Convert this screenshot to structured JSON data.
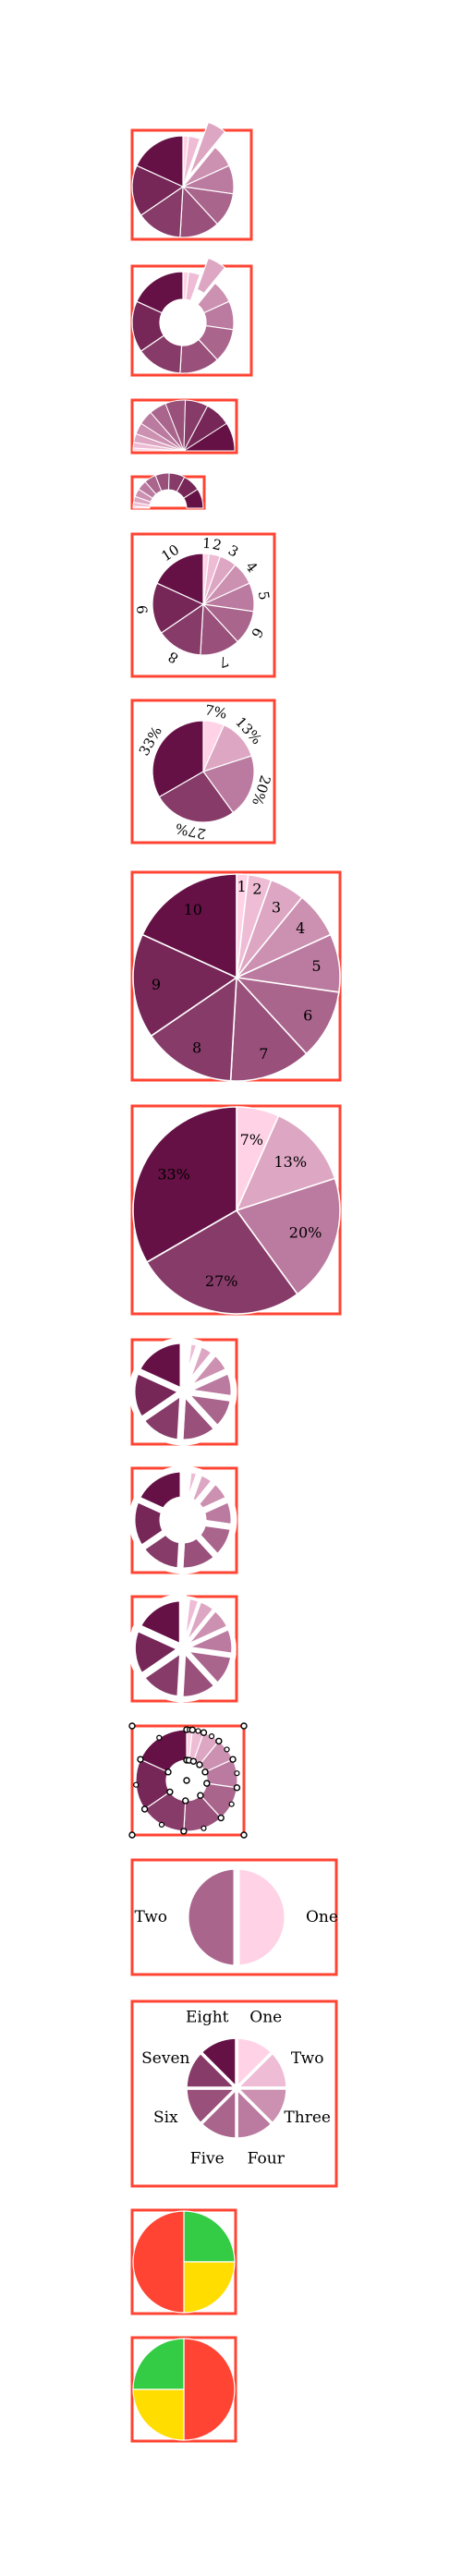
{
  "palette": [
    "#ffd2e6",
    "#eebcd5",
    "#dda6c3",
    "#cc90b1",
    "#bb7a9f",
    "#aa658d",
    "#99507b",
    "#873b69",
    "#762657",
    "#651145"
  ],
  "frame_color": "#ff4433",
  "chart_data": [
    {
      "type": "pie",
      "variant": "exploded-pie",
      "values": [
        1,
        2,
        3,
        4,
        5,
        6,
        7,
        8,
        9,
        10
      ],
      "explode_index": 2
    },
    {
      "type": "pie",
      "variant": "exploded-donut",
      "values": [
        1,
        2,
        3,
        4,
        5,
        6,
        7,
        8,
        9,
        10
      ],
      "explode_index": 2
    },
    {
      "type": "pie",
      "variant": "half-pie",
      "values": [
        1,
        2,
        3,
        4,
        5,
        6,
        7,
        8,
        9,
        10
      ]
    },
    {
      "type": "pie",
      "variant": "half-donut",
      "values": [
        1,
        2,
        3,
        4,
        5,
        6,
        7,
        8,
        9,
        10
      ]
    },
    {
      "type": "pie",
      "variant": "labels-outside-rotated",
      "values": [
        1,
        2,
        3,
        4,
        5,
        6,
        7,
        8,
        9,
        10
      ],
      "labels": [
        "1",
        "2",
        "3",
        "4",
        "5",
        "6",
        "7",
        "8",
        "9",
        "10"
      ]
    },
    {
      "type": "pie",
      "variant": "percent-outside-rotated",
      "values": [
        1,
        2,
        3,
        4,
        5
      ],
      "labels": [
        "7%",
        "13%",
        "20%",
        "27%",
        "33%"
      ]
    },
    {
      "type": "pie",
      "variant": "labels-inside",
      "values": [
        1,
        2,
        3,
        4,
        5,
        6,
        7,
        8,
        9,
        10
      ],
      "labels": [
        "1",
        "2",
        "3",
        "4",
        "5",
        "6",
        "7",
        "8",
        "9",
        "10"
      ]
    },
    {
      "type": "pie",
      "variant": "percent-inside",
      "values": [
        1,
        2,
        3,
        4,
        5
      ],
      "labels": [
        "7%",
        "13%",
        "20%",
        "27%",
        "33%"
      ]
    },
    {
      "type": "pie",
      "variant": "wide-gaps",
      "values": [
        1,
        2,
        3,
        4,
        5,
        6,
        7,
        8,
        9,
        10
      ]
    },
    {
      "type": "pie",
      "variant": "wide-gaps-donut",
      "values": [
        1,
        2,
        3,
        4,
        5,
        6,
        7,
        8,
        9,
        10
      ]
    },
    {
      "type": "pie",
      "variant": "tapered-gaps",
      "values": [
        1,
        2,
        3,
        4,
        5,
        6,
        7,
        8,
        9,
        10
      ]
    },
    {
      "type": "pie",
      "variant": "donut-control-points",
      "values": [
        1,
        2,
        3,
        4,
        5,
        6,
        7,
        8,
        9,
        10
      ]
    },
    {
      "type": "pie",
      "variant": "two-halves",
      "values": [
        1,
        1
      ],
      "labels": [
        "One",
        "Two"
      ]
    },
    {
      "type": "pie",
      "variant": "named-labels-outside",
      "values": [
        1,
        1,
        1,
        1,
        1,
        1,
        1,
        1
      ],
      "labels": [
        "One",
        "Two",
        "Three",
        "Four",
        "Five",
        "Six",
        "Seven",
        "Eight"
      ]
    },
    {
      "type": "pie",
      "variant": "traffic-light",
      "values": [
        1,
        1,
        2
      ],
      "colors": [
        "#33cc44",
        "#ffdd00",
        "#ff4433"
      ],
      "start_angle_deg": 0
    },
    {
      "type": "pie",
      "variant": "traffic-light-rotated",
      "values": [
        2,
        1,
        1
      ],
      "colors": [
        "#ff4433",
        "#ffdd00",
        "#33cc44"
      ],
      "start_angle_deg": 0
    }
  ]
}
